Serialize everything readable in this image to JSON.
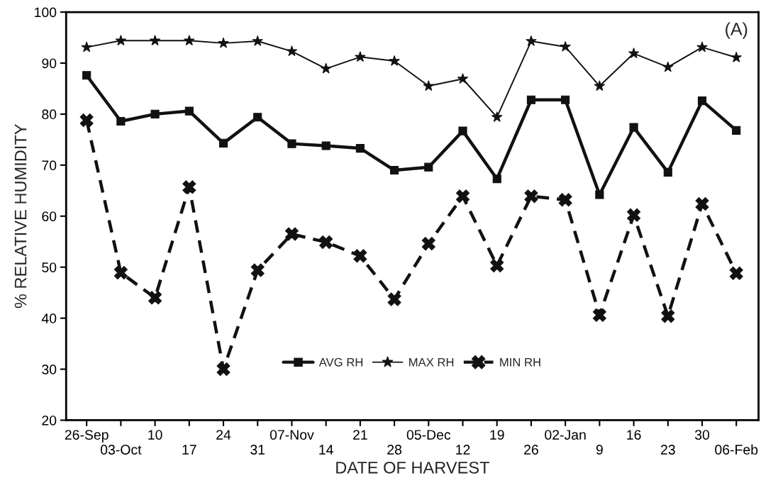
{
  "chart_data": {
    "type": "line",
    "xlabel": "DATE OF HARVEST",
    "ylabel": "% RELATIVE HUMIDITY",
    "categories": [
      "26-Sep",
      "03-Oct",
      "10",
      "17",
      "24",
      "31",
      "07-Nov",
      "14",
      "21",
      "28",
      "05-Dec",
      "12",
      "19",
      "26",
      "02-Jan",
      "9",
      "16",
      "23",
      "30",
      "06-Feb"
    ],
    "series": [
      {
        "name": "AVG RH",
        "color": "#111111",
        "marker": "square",
        "line_style": "solid",
        "values": [
          87.6,
          78.6,
          80.0,
          80.6,
          74.3,
          79.4,
          74.2,
          73.8,
          73.3,
          69.0,
          69.6,
          76.7,
          67.3,
          82.8,
          82.8,
          64.2,
          77.4,
          68.6,
          82.6,
          76.8
        ]
      },
      {
        "name": "MAX RH",
        "color": "#111111",
        "marker": "star",
        "line_style": "solid",
        "values": [
          93.1,
          94.4,
          94.4,
          94.4,
          93.9,
          94.3,
          92.3,
          88.9,
          91.2,
          90.4,
          85.5,
          86.9,
          79.4,
          94.3,
          93.2,
          85.5,
          91.9,
          89.2,
          93.1,
          91.1
        ]
      },
      {
        "name": "MIN RH",
        "color": "#111111",
        "marker": "cross",
        "line_style": "dashed",
        "values": [
          78.8,
          48.9,
          44.0,
          65.7,
          30.0,
          49.4,
          56.5,
          54.9,
          52.2,
          43.7,
          54.6,
          63.9,
          50.3,
          63.9,
          63.2,
          40.6,
          60.2,
          40.4,
          62.4,
          48.8
        ]
      }
    ],
    "ylim": [
      20,
      100
    ],
    "yticks": [
      20,
      30,
      40,
      50,
      60,
      70,
      80,
      90,
      100
    ],
    "grid": false,
    "legend": "bottom",
    "annotations": [
      "(A)"
    ]
  }
}
